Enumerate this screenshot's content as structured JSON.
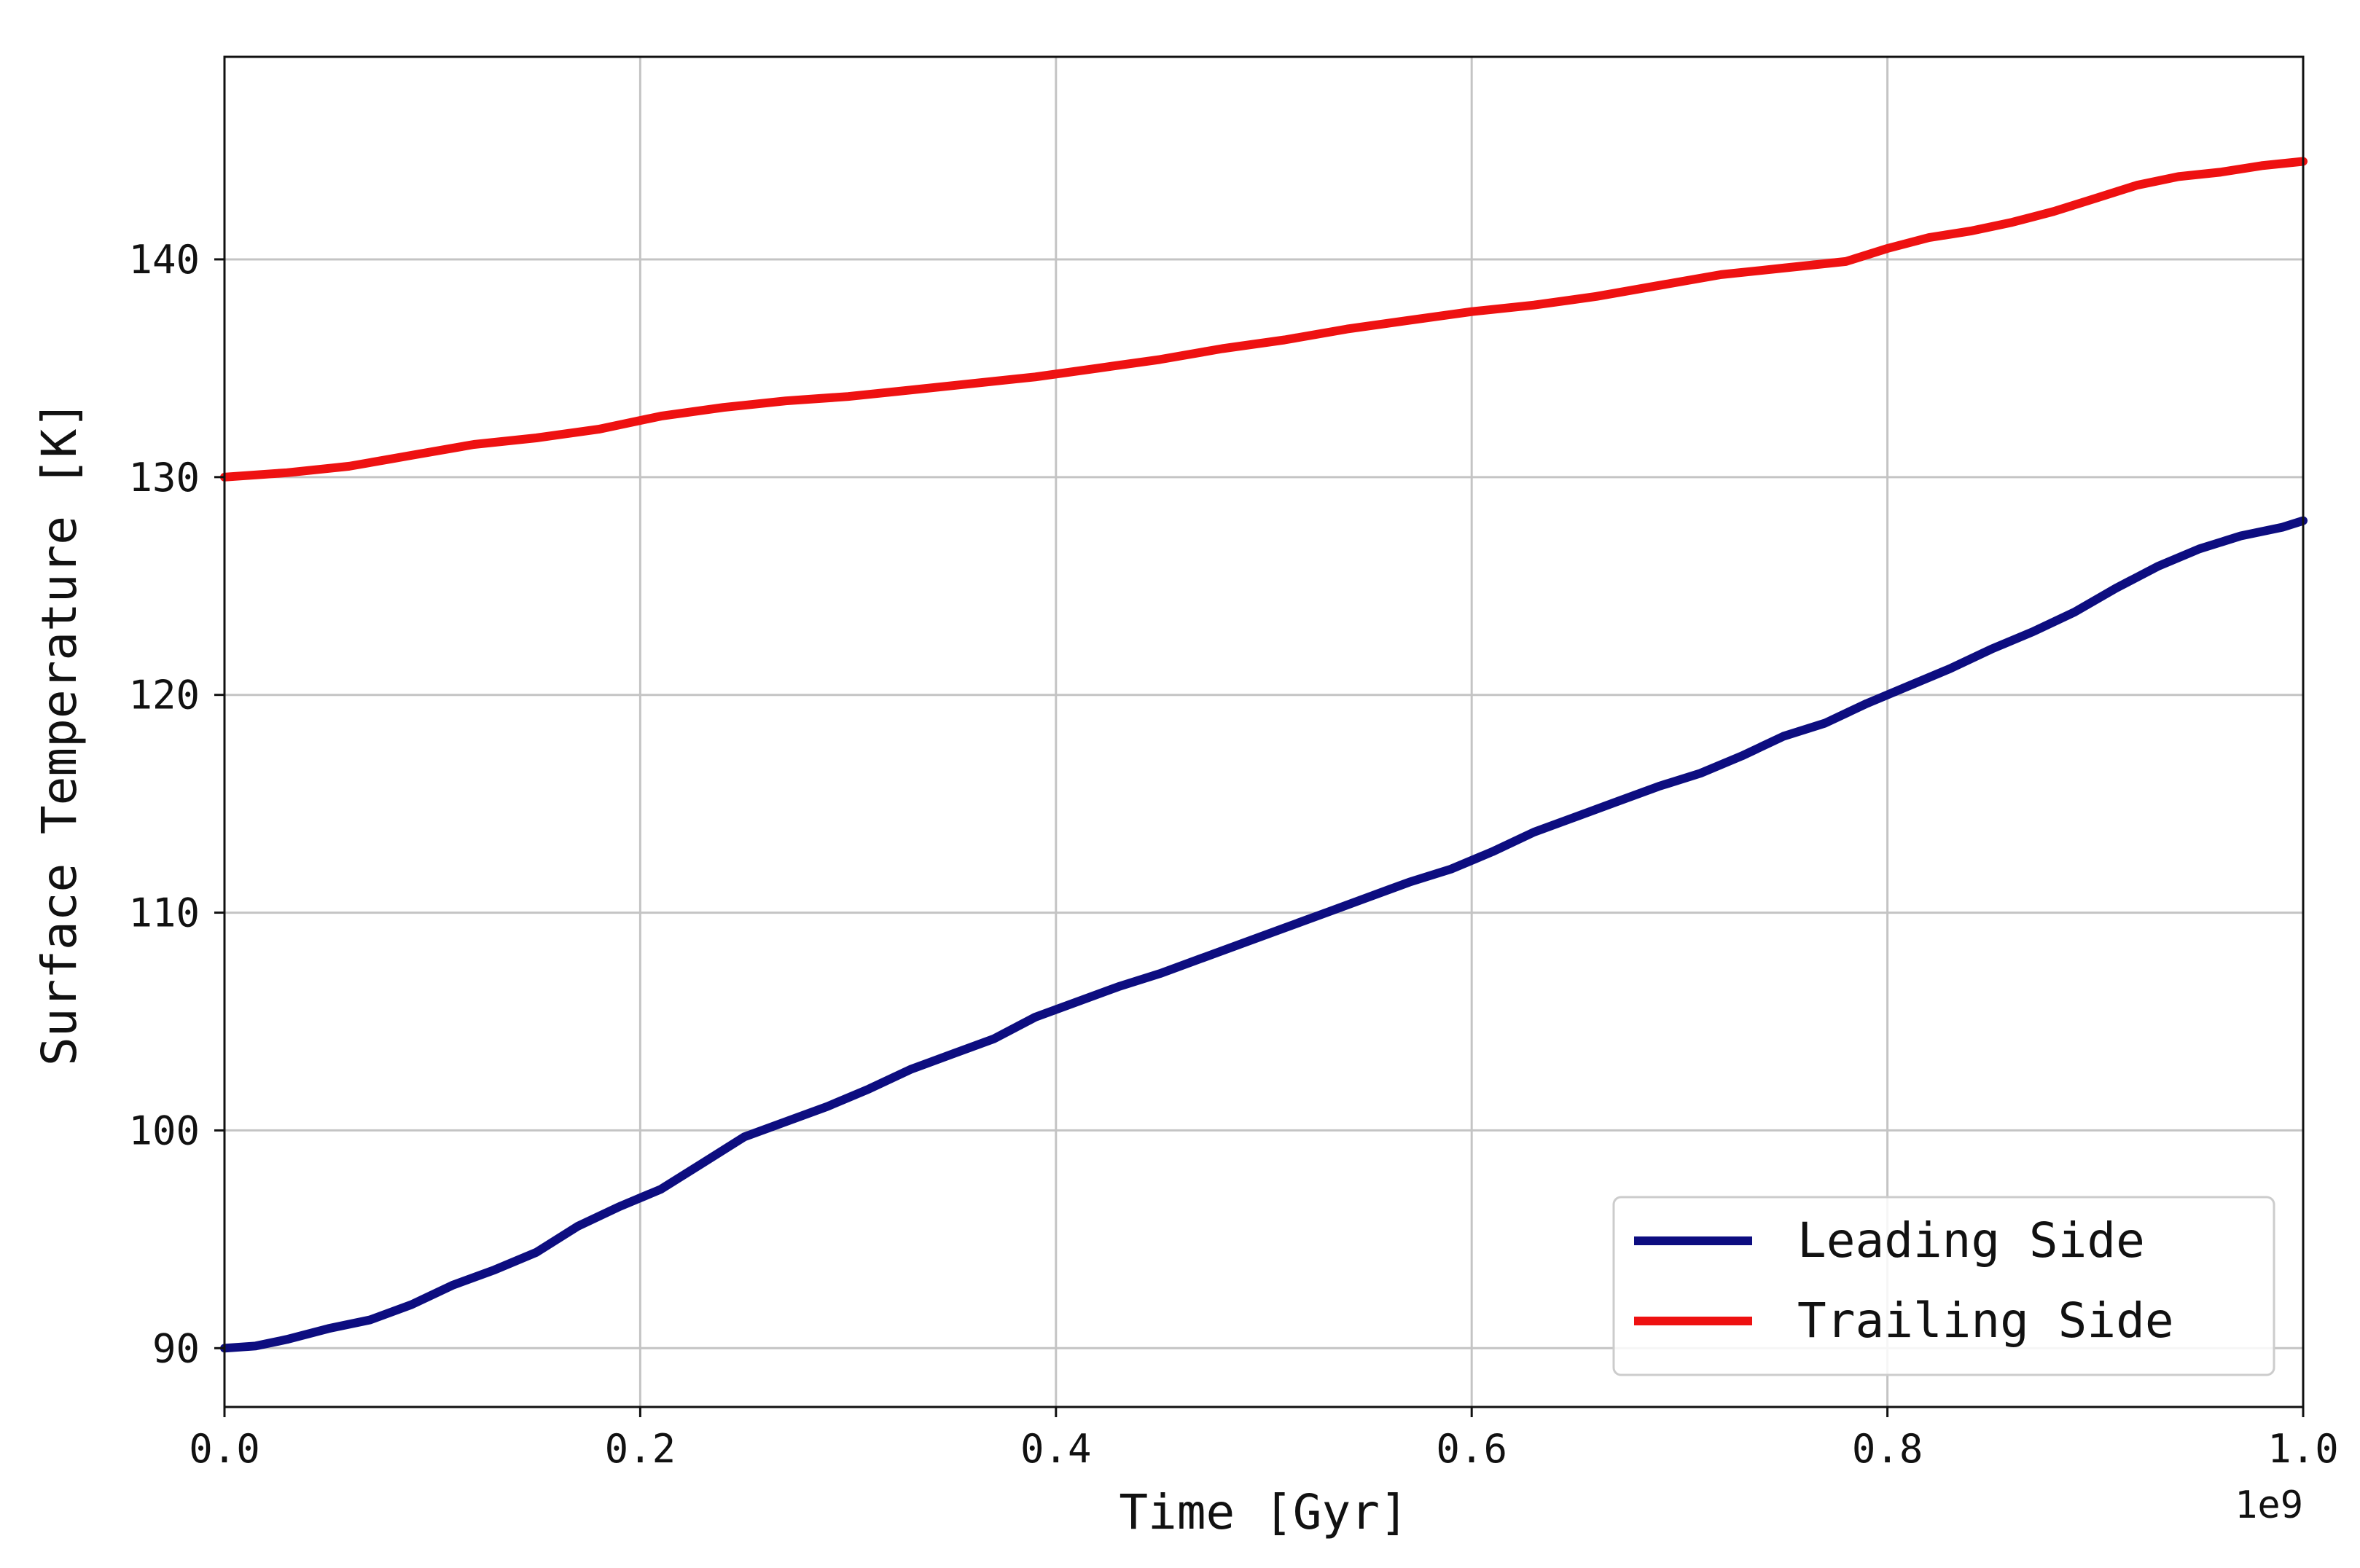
{
  "chart_data": {
    "type": "line",
    "xlabel": "Time [Gyr]",
    "ylabel": "Surface Temperature [K]",
    "x_offset_label": "1e9",
    "xlim": [
      0.0,
      1.0
    ],
    "ylim": [
      87.3,
      149.3
    ],
    "x_ticks": [
      0.0,
      0.2,
      0.4,
      0.6,
      0.8,
      1.0
    ],
    "x_tick_labels": [
      "0.0",
      "0.2",
      "0.4",
      "0.6",
      "0.8",
      "1.0"
    ],
    "y_ticks": [
      90,
      100,
      110,
      120,
      130,
      140
    ],
    "y_tick_labels": [
      "90",
      "100",
      "110",
      "120",
      "130",
      "140"
    ],
    "grid": true,
    "legend_position": "lower-right",
    "series": [
      {
        "name": "Leading Side",
        "color": "#0d0d80",
        "x": [
          0.0,
          0.015,
          0.03,
          0.05,
          0.07,
          0.09,
          0.11,
          0.13,
          0.15,
          0.17,
          0.19,
          0.21,
          0.23,
          0.25,
          0.27,
          0.29,
          0.31,
          0.33,
          0.35,
          0.37,
          0.39,
          0.41,
          0.43,
          0.45,
          0.47,
          0.49,
          0.51,
          0.53,
          0.55,
          0.57,
          0.59,
          0.61,
          0.63,
          0.65,
          0.67,
          0.69,
          0.71,
          0.73,
          0.75,
          0.77,
          0.79,
          0.81,
          0.83,
          0.85,
          0.87,
          0.89,
          0.91,
          0.93,
          0.95,
          0.97,
          0.99,
          1.0
        ],
        "y": [
          90.0,
          90.1,
          90.4,
          90.9,
          91.3,
          92.0,
          92.9,
          93.6,
          94.4,
          95.6,
          96.5,
          97.3,
          98.5,
          99.7,
          100.4,
          101.1,
          101.9,
          102.8,
          103.5,
          104.2,
          105.2,
          105.9,
          106.6,
          107.2,
          107.9,
          108.6,
          109.3,
          110.0,
          110.7,
          111.4,
          112.0,
          112.8,
          113.7,
          114.4,
          115.1,
          115.8,
          116.4,
          117.2,
          118.1,
          118.7,
          119.6,
          120.4,
          121.2,
          122.1,
          122.9,
          123.8,
          124.9,
          125.9,
          126.7,
          127.3,
          127.7,
          128.0
        ]
      },
      {
        "name": "Trailing Side",
        "color": "#ee1111",
        "x": [
          0.0,
          0.03,
          0.06,
          0.09,
          0.12,
          0.15,
          0.18,
          0.21,
          0.24,
          0.27,
          0.3,
          0.33,
          0.36,
          0.39,
          0.42,
          0.45,
          0.48,
          0.51,
          0.54,
          0.57,
          0.6,
          0.63,
          0.66,
          0.69,
          0.72,
          0.75,
          0.78,
          0.8,
          0.82,
          0.84,
          0.86,
          0.88,
          0.9,
          0.92,
          0.94,
          0.96,
          0.98,
          1.0
        ],
        "y": [
          130.0,
          130.2,
          130.5,
          131.0,
          131.5,
          131.8,
          132.2,
          132.8,
          133.2,
          133.5,
          133.7,
          134.0,
          134.3,
          134.6,
          135.0,
          135.4,
          135.9,
          136.3,
          136.8,
          137.2,
          137.6,
          137.9,
          138.3,
          138.8,
          139.3,
          139.6,
          139.9,
          140.5,
          141.0,
          141.3,
          141.7,
          142.2,
          142.8,
          143.4,
          143.8,
          144.0,
          144.3,
          144.5
        ]
      }
    ]
  }
}
